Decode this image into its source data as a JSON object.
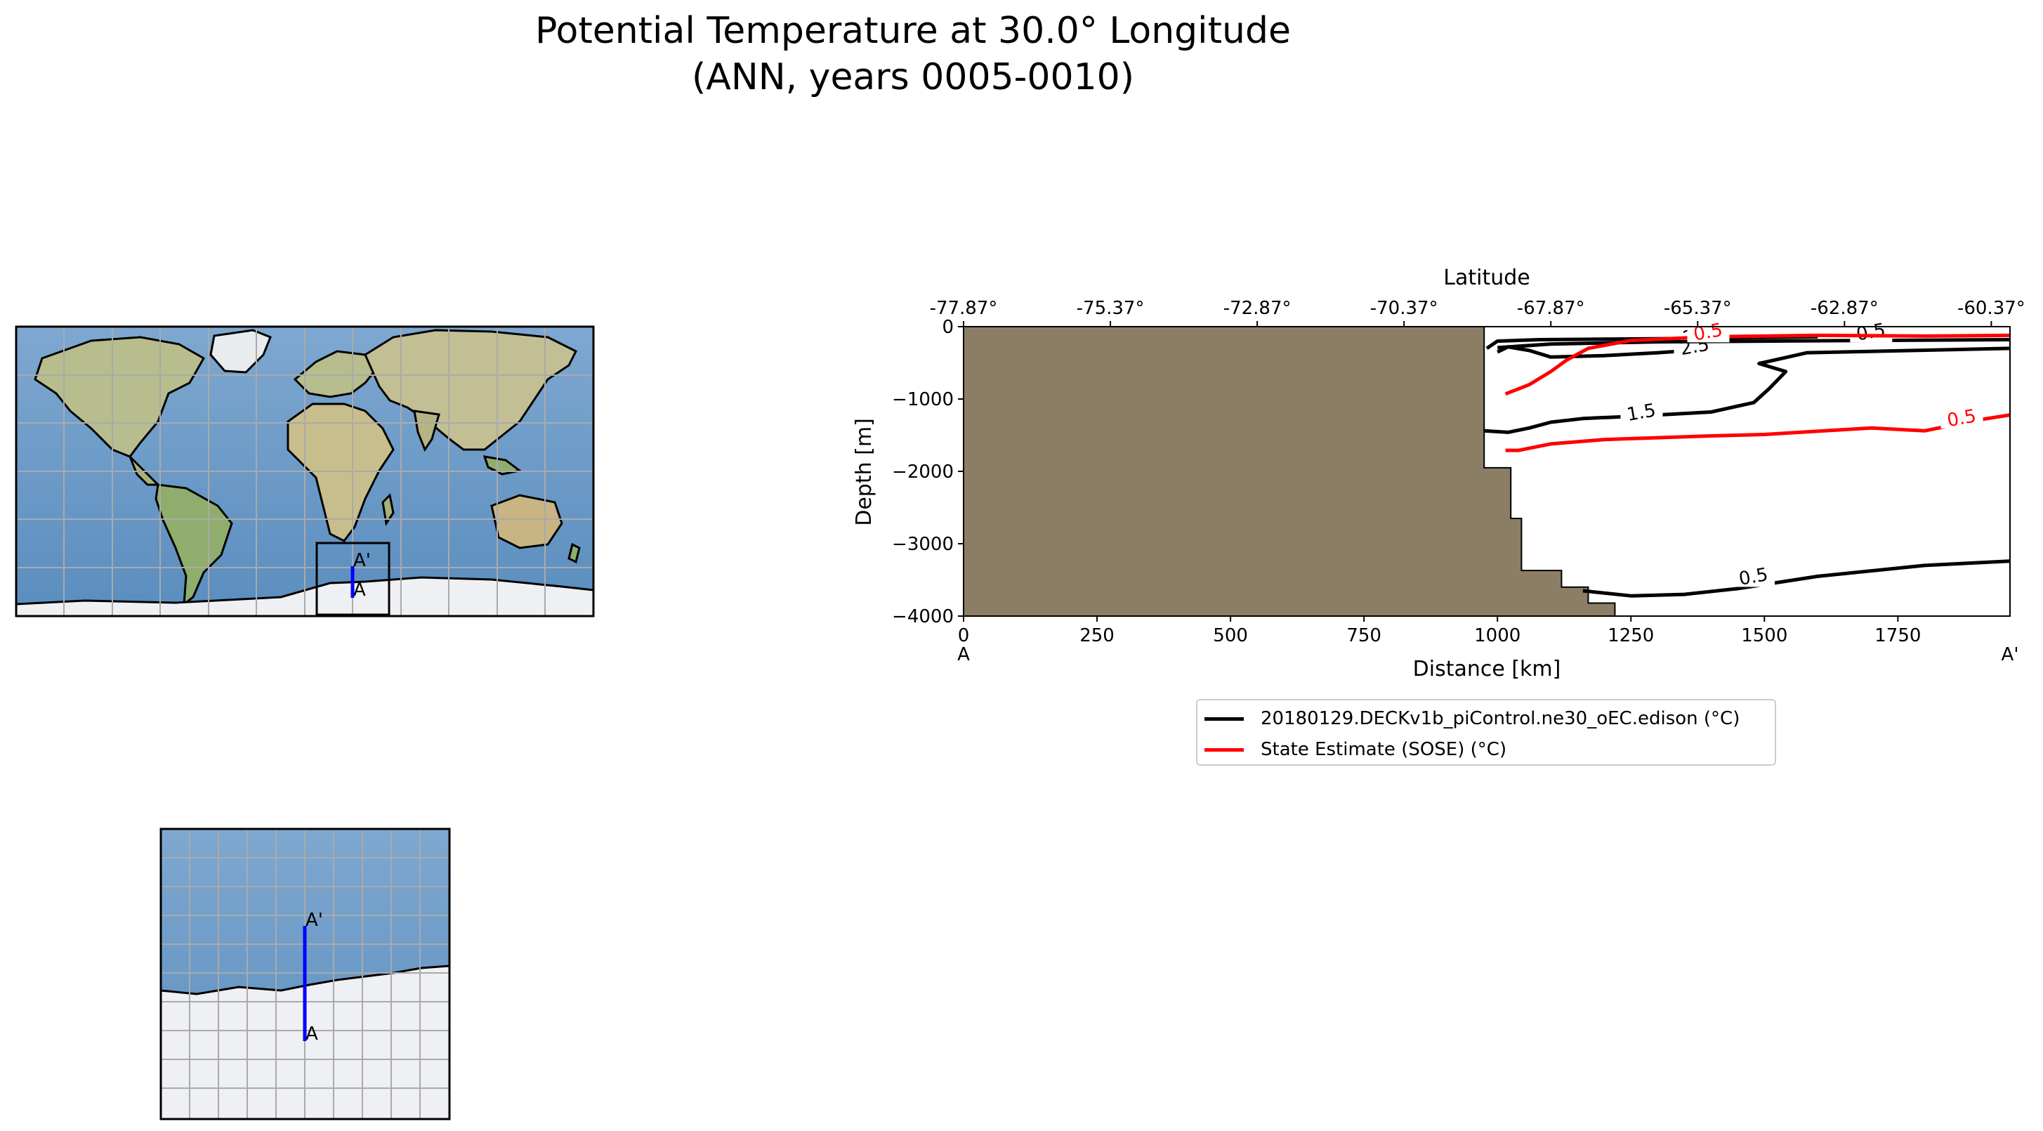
{
  "header": {
    "title_line1": "Potential Temperature at 30.0° Longitude",
    "title_line2": "(ANN, years 0005-0010)"
  },
  "maps": {
    "global": {
      "label_a": "A",
      "label_a_prime": "A'"
    },
    "inset": {
      "label_a": "A",
      "label_a_prime": "A'"
    },
    "colors": {
      "ocean": "#6f9cc8",
      "land": "#c9c39a",
      "ice": "#eef0f3",
      "transect": "#0000ff",
      "grid": "#aaaaaa"
    }
  },
  "chart_data": {
    "type": "contour",
    "title": "",
    "xlabel": "Distance [km]",
    "ylabel": "Depth [m]",
    "top_xlabel": "Latitude",
    "xlim": [
      0,
      1960
    ],
    "ylim": [
      -4000,
      0
    ],
    "x_ticks": [
      0,
      250,
      500,
      750,
      1000,
      1250,
      1500,
      1750
    ],
    "x_tick_labels": [
      "0",
      "250",
      "500",
      "750",
      "1000",
      "1250",
      "1500",
      "1750"
    ],
    "y_ticks": [
      0,
      -1000,
      -2000,
      -3000,
      -4000
    ],
    "y_tick_labels": [
      "0",
      "−1000",
      "−2000",
      "−3000",
      "−4000"
    ],
    "top_ticks": [
      0,
      275,
      550,
      825,
      1100,
      1375,
      1650,
      1925
    ],
    "top_tick_labels": [
      "-77.87°",
      "-75.37°",
      "-72.87°",
      "-70.37°",
      "-67.87°",
      "-65.37°",
      "-62.87°",
      "-60.37°"
    ],
    "endpoint_labels": {
      "start": "A",
      "end": "A'"
    },
    "land_color": "#8c7e64",
    "bathymetry": [
      [
        0,
        0
      ],
      [
        975,
        0
      ],
      [
        975,
        -1950
      ],
      [
        1025,
        -1950
      ],
      [
        1025,
        -2650
      ],
      [
        1045,
        -2650
      ],
      [
        1045,
        -3370
      ],
      [
        1120,
        -3370
      ],
      [
        1120,
        -3600
      ],
      [
        1170,
        -3600
      ],
      [
        1170,
        -3820
      ],
      [
        1220,
        -3820
      ],
      [
        1220,
        -4000
      ],
      [
        0,
        -4000
      ]
    ],
    "series": [
      {
        "name": "20180129.DECKv1b_piControl.ne30_oEC.edison (°C)",
        "color": "#000000",
        "contours": [
          {
            "level": "2.5",
            "points": [
              [
                980,
                -300
              ],
              [
                1000,
                -200
              ],
              [
                1080,
                -180
              ],
              [
                1250,
                -170
              ],
              [
                1400,
                -160
              ],
              [
                1500,
                -150
              ],
              [
                1600,
                -140
              ]
            ],
            "label_at": [
              1375,
              -150
            ]
          },
          {
            "level": "2.5",
            "points": [
              [
                1000,
                -350
              ],
              [
                1020,
                -280
              ],
              [
                1060,
                -330
              ],
              [
                1100,
                -420
              ],
              [
                1200,
                -400
              ],
              [
                1300,
                -360
              ],
              [
                1360,
                -330
              ]
            ],
            "label_at": [
              1370,
              -300
            ]
          },
          {
            "level": "1.5",
            "points": [
              [
                975,
                -1440
              ],
              [
                1020,
                -1460
              ],
              [
                1060,
                -1400
              ],
              [
                1100,
                -1320
              ],
              [
                1160,
                -1270
              ],
              [
                1250,
                -1240
              ],
              [
                1400,
                -1180
              ],
              [
                1480,
                -1050
              ],
              [
                1510,
                -850
              ],
              [
                1540,
                -620
              ],
              [
                1490,
                -510
              ],
              [
                1580,
                -360
              ],
              [
                1960,
                -300
              ]
            ],
            "label_at": [
              1270,
              -1210
            ]
          },
          {
            "level": "0.5",
            "points": [
              [
                1000,
                -290
              ],
              [
                1100,
                -240
              ],
              [
                1300,
                -210
              ],
              [
                1500,
                -200
              ],
              [
                1700,
                -190
              ],
              [
                1960,
                -180
              ]
            ],
            "label_at": [
              1700,
              -100
            ]
          },
          {
            "level": "0.5",
            "points": [
              [
                1160,
                -3650
              ],
              [
                1250,
                -3720
              ],
              [
                1350,
                -3700
              ],
              [
                1450,
                -3620
              ],
              [
                1600,
                -3450
              ],
              [
                1800,
                -3300
              ],
              [
                1960,
                -3240
              ]
            ],
            "label_at": [
              1480,
              -3480
            ]
          }
        ]
      },
      {
        "name": "State Estimate (SOSE) (°C)",
        "color": "#ff0000",
        "contours": [
          {
            "level": "0.5",
            "points": [
              [
                1015,
                -930
              ],
              [
                1060,
                -800
              ],
              [
                1100,
                -620
              ],
              [
                1130,
                -460
              ],
              [
                1170,
                -300
              ],
              [
                1250,
                -190
              ],
              [
                1400,
                -140
              ],
              [
                1600,
                -120
              ],
              [
                1800,
                -130
              ],
              [
                1960,
                -120
              ]
            ],
            "label_at": [
              1395,
              -100
            ]
          },
          {
            "level": "0.5",
            "points": [
              [
                1015,
                -1710
              ],
              [
                1040,
                -1710
              ],
              [
                1100,
                -1620
              ],
              [
                1200,
                -1560
              ],
              [
                1400,
                -1510
              ],
              [
                1500,
                -1490
              ],
              [
                1700,
                -1400
              ],
              [
                1800,
                -1440
              ],
              [
                1900,
                -1290
              ],
              [
                1960,
                -1220
              ]
            ],
            "label_at": [
              1870,
              -1290
            ]
          }
        ]
      }
    ],
    "legend": {
      "position": "below",
      "entries": [
        {
          "label": "20180129.DECKv1b_piControl.ne30_oEC.edison (°C)",
          "color": "#000000"
        },
        {
          "label": "State Estimate (SOSE) (°C)",
          "color": "#ff0000"
        }
      ]
    }
  }
}
